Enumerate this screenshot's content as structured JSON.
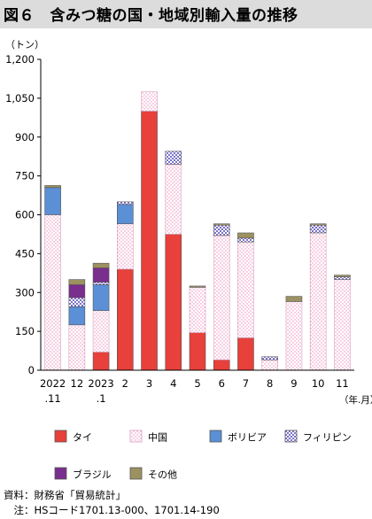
{
  "title": "図６　含みつ糖の国・地域別輸入量の推移",
  "chart_data": {
    "type": "bar",
    "stacked": true,
    "ylabel": "（トン）",
    "xlabel": "（年.月）",
    "ylim": [
      0,
      1200
    ],
    "yticks": [
      "0",
      "150",
      "300",
      "450",
      "600",
      "750",
      "900",
      "1,050",
      "1,200"
    ],
    "ytick_values": [
      0,
      150,
      300,
      450,
      600,
      750,
      900,
      1050,
      1200
    ],
    "grid": false,
    "legend_position": "bottom",
    "categories": [
      [
        "2022",
        ".11"
      ],
      [
        "12",
        ""
      ],
      [
        "2023",
        ".1"
      ],
      [
        "2",
        ""
      ],
      [
        "3",
        ""
      ],
      [
        "4",
        ""
      ],
      [
        "5",
        ""
      ],
      [
        "6",
        ""
      ],
      [
        "7",
        ""
      ],
      [
        "8",
        ""
      ],
      [
        "9",
        ""
      ],
      [
        "10",
        ""
      ],
      [
        "11",
        ""
      ]
    ],
    "series": [
      {
        "name": "タイ",
        "color": "#e8403a",
        "pattern": "solid",
        "values": [
          0,
          0,
          70,
          390,
          1000,
          525,
          145,
          40,
          125,
          0,
          0,
          0,
          0
        ]
      },
      {
        "name": "中国",
        "color": "#f4a8cf",
        "pattern": "dots",
        "values": [
          600,
          175,
          160,
          175,
          75,
          270,
          175,
          480,
          370,
          40,
          265,
          530,
          350
        ]
      },
      {
        "name": "ボリビア",
        "color": "#5b8fd6",
        "pattern": "solid",
        "values": [
          105,
          70,
          100,
          75,
          0,
          0,
          0,
          0,
          0,
          0,
          0,
          0,
          0
        ]
      },
      {
        "name": "フィリピン",
        "color": "#7a72c8",
        "pattern": "checks",
        "values": [
          0,
          35,
          10,
          10,
          0,
          50,
          0,
          40,
          15,
          12,
          0,
          30,
          10
        ]
      },
      {
        "name": "ブラジル",
        "color": "#7a2e8e",
        "pattern": "solid",
        "values": [
          0,
          50,
          55,
          0,
          0,
          0,
          0,
          0,
          0,
          0,
          0,
          0,
          0
        ]
      },
      {
        "name": "その他",
        "color": "#9c9160",
        "pattern": "solid",
        "values": [
          8,
          20,
          18,
          0,
          0,
          0,
          5,
          5,
          20,
          0,
          20,
          5,
          7
        ]
      }
    ]
  },
  "source": "資料：財務省「貿易統計」",
  "note": "　注：HSコード1701.13-000、1701.14-190"
}
